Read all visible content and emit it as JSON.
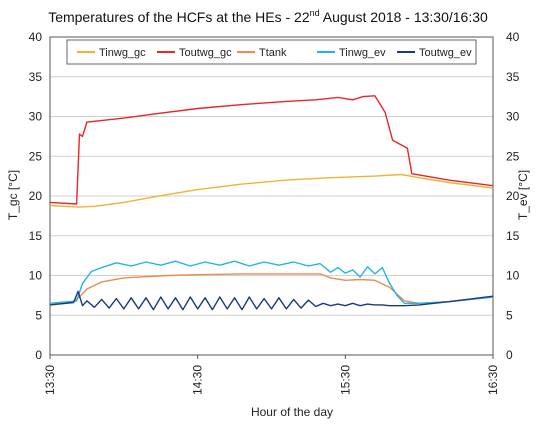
{
  "chart_data": {
    "type": "line",
    "title": {
      "prefix": "Temperatures of the HCFs at the HEs - 22",
      "superscript": "nd",
      "suffix": " August 2018 - 13:30/16:30"
    },
    "xlabel": "Hour of the day",
    "ylabel_left": "T_gc [°C]",
    "ylabel_right": "T_ev [°C]",
    "ylim": [
      0,
      40
    ],
    "yticks": [
      0,
      5,
      10,
      15,
      20,
      25,
      30,
      35,
      40
    ],
    "xlim": [
      13.5,
      16.5
    ],
    "xticks": [
      {
        "value": 13.5,
        "label": "13:30"
      },
      {
        "value": 14.5,
        "label": "14:30"
      },
      {
        "value": 15.5,
        "label": "15:30"
      },
      {
        "value": 16.5,
        "label": "16:30"
      }
    ],
    "grid": "horizontal",
    "legend_position": "top",
    "series": [
      {
        "name": "Tinwg_gc",
        "color": "#f2b134",
        "x": [
          13.5,
          13.6,
          13.7,
          13.8,
          14.0,
          14.3,
          14.5,
          14.8,
          15.1,
          15.4,
          15.7,
          15.88,
          16.0,
          16.2,
          16.5
        ],
        "y": [
          18.8,
          18.7,
          18.6,
          18.7,
          19.2,
          20.2,
          20.8,
          21.5,
          22.0,
          22.3,
          22.5,
          22.7,
          22.3,
          21.7,
          21.0
        ]
      },
      {
        "name": "Toutwg_gc",
        "color": "#e8252a",
        "x": [
          13.5,
          13.68,
          13.7,
          13.72,
          13.75,
          13.8,
          14.0,
          14.2,
          14.5,
          14.8,
          15.1,
          15.3,
          15.45,
          15.55,
          15.62,
          15.7,
          15.77,
          15.82,
          15.92,
          15.95,
          16.2,
          16.5
        ],
        "y": [
          19.2,
          19.0,
          27.8,
          27.5,
          29.3,
          29.4,
          29.8,
          30.3,
          31.0,
          31.5,
          31.9,
          32.1,
          32.4,
          32.1,
          32.5,
          32.6,
          30.5,
          27.0,
          26.0,
          22.8,
          22.0,
          21.3
        ]
      },
      {
        "name": "Ttank",
        "color": "#f08a4b",
        "x": [
          13.5,
          13.65,
          13.7,
          13.75,
          13.85,
          14.0,
          14.3,
          14.5,
          14.8,
          15.1,
          15.33,
          15.4,
          15.5,
          15.6,
          15.7,
          15.8,
          15.9,
          16.0,
          16.2,
          16.5
        ],
        "y": [
          6.5,
          6.6,
          7.3,
          8.3,
          9.2,
          9.7,
          10.0,
          10.1,
          10.2,
          10.2,
          10.2,
          9.7,
          9.4,
          9.5,
          9.4,
          8.5,
          6.8,
          6.5,
          6.7,
          7.3
        ]
      },
      {
        "name": "Tinwg_ev",
        "color": "#1fb5e6",
        "x": [
          13.5,
          13.68,
          13.72,
          13.78,
          13.85,
          13.95,
          14.05,
          14.15,
          14.25,
          14.35,
          14.45,
          14.55,
          14.65,
          14.75,
          14.85,
          14.95,
          15.05,
          15.15,
          15.25,
          15.33,
          15.4,
          15.45,
          15.5,
          15.55,
          15.6,
          15.65,
          15.7,
          15.75,
          15.8,
          15.85,
          15.9,
          16.0,
          16.2,
          16.5
        ],
        "y": [
          6.5,
          6.8,
          9.0,
          10.5,
          11.0,
          11.6,
          11.2,
          11.7,
          11.3,
          11.8,
          11.2,
          11.7,
          11.3,
          11.8,
          11.2,
          11.7,
          11.3,
          11.7,
          11.2,
          11.5,
          10.4,
          11.0,
          10.3,
          10.7,
          9.8,
          11.1,
          10.2,
          11.0,
          9.0,
          7.5,
          6.5,
          6.5,
          6.7,
          7.3
        ]
      },
      {
        "name": "Toutwg_ev",
        "color": "#1a3a7a",
        "x": [
          13.5,
          13.66,
          13.69,
          13.72,
          13.75,
          13.8,
          13.85,
          13.9,
          13.95,
          14.0,
          14.05,
          14.1,
          14.15,
          14.2,
          14.25,
          14.3,
          14.35,
          14.4,
          14.45,
          14.5,
          14.55,
          14.6,
          14.65,
          14.7,
          14.75,
          14.8,
          14.85,
          14.9,
          14.95,
          15.0,
          15.05,
          15.1,
          15.15,
          15.2,
          15.25,
          15.3,
          15.35,
          15.4,
          15.45,
          15.5,
          15.55,
          15.6,
          15.65,
          15.7,
          15.75,
          15.8,
          15.9,
          16.0,
          16.2,
          16.5
        ],
        "y": [
          6.3,
          6.6,
          8.0,
          6.2,
          6.8,
          6.0,
          7.0,
          5.9,
          7.1,
          5.8,
          7.2,
          5.8,
          7.2,
          5.7,
          7.3,
          5.8,
          7.2,
          5.7,
          7.3,
          5.8,
          7.2,
          5.7,
          7.3,
          5.8,
          7.2,
          5.7,
          7.3,
          5.8,
          7.1,
          5.8,
          7.2,
          5.8,
          7.0,
          5.9,
          6.9,
          6.1,
          6.5,
          6.2,
          6.4,
          6.2,
          6.5,
          6.2,
          6.4,
          6.3,
          6.3,
          6.2,
          6.2,
          6.3,
          6.7,
          7.4
        ]
      }
    ]
  }
}
